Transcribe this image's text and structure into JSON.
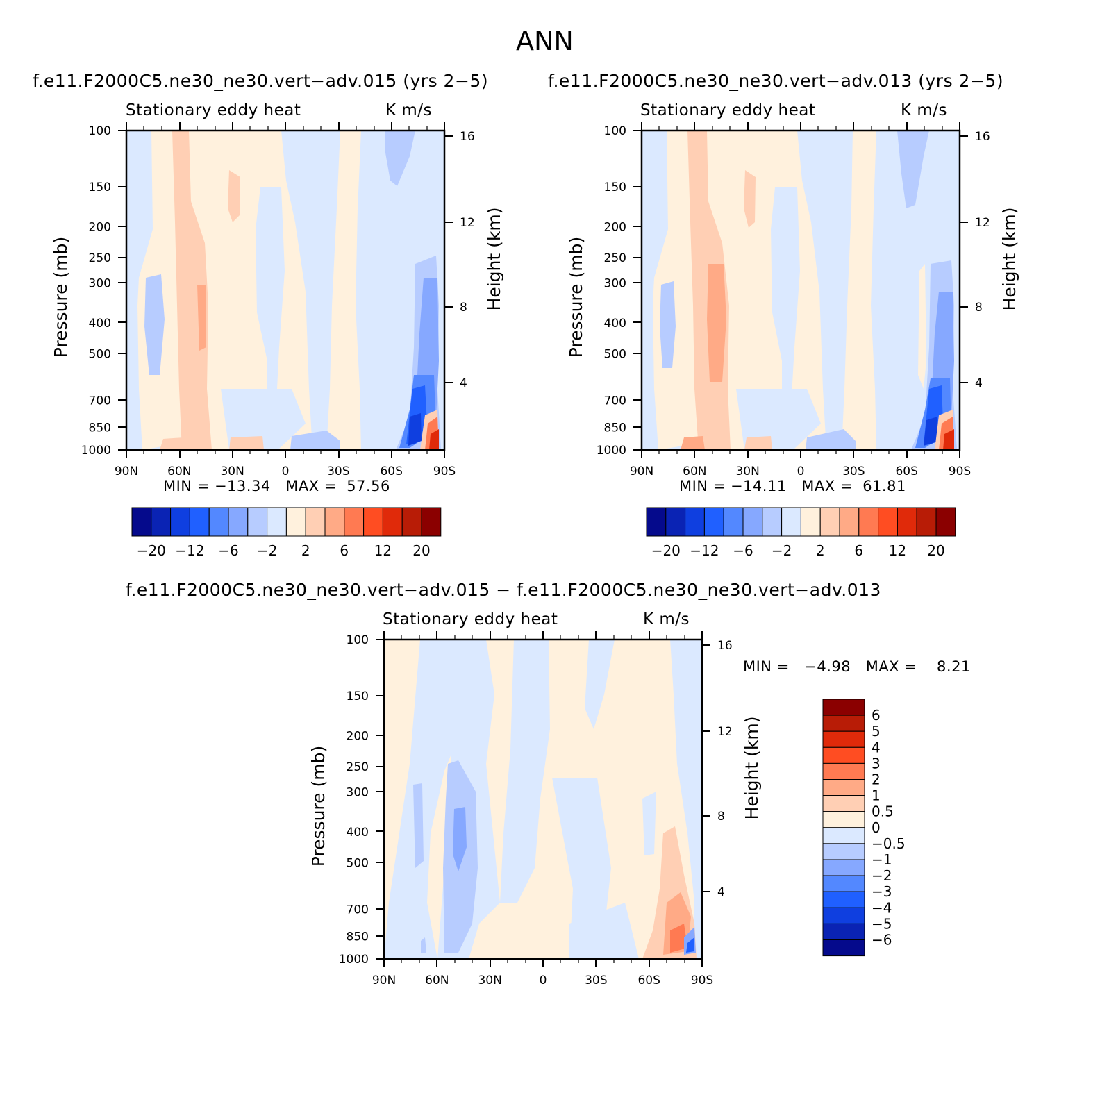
{
  "figure": {
    "title": "ANN",
    "colorbar_labels": [
      "−20",
      "−12",
      "−6",
      "−2",
      "2",
      "6",
      "12",
      "20"
    ],
    "colorbar_colors": [
      "#050a8c",
      "#0a23b4",
      "#0f3fe0",
      "#2060ff",
      "#5388ff",
      "#86a8ff",
      "#b7ccff",
      "#dbe9ff",
      "#fff1dd",
      "#ffcfb4",
      "#ffaa86",
      "#ff7a52",
      "#ff4d22",
      "#e02a0a",
      "#b81c06",
      "#8b0000"
    ],
    "diff_colorbar_labels": [
      "6",
      "5",
      "4",
      "3",
      "2",
      "1",
      "0.5",
      "0",
      "−0.5",
      "−1",
      "−2",
      "−3",
      "−4",
      "−5",
      "−6"
    ],
    "diff_colorbar_colors": [
      "#8b0000",
      "#b81c06",
      "#e02a0a",
      "#ff4d22",
      "#ff7a52",
      "#ffaa86",
      "#ffcfb4",
      "#fff1dd",
      "#dbe9ff",
      "#b7ccff",
      "#86a8ff",
      "#5388ff",
      "#2060ff",
      "#0f3fe0",
      "#0a23b4",
      "#050a8c"
    ]
  },
  "panels": [
    {
      "title": "f.e11.F2000C5.ne30_ne30.vert−adv.015 (yrs 2−5)",
      "left_label": "Stationary eddy heat",
      "right_label": "K m/s",
      "stats": "MIN = −13.34   MAX =  57.56"
    },
    {
      "title": "f.e11.F2000C5.ne30_ne30.vert−adv.013 (yrs 2−5)",
      "left_label": "Stationary eddy heat",
      "right_label": "K m/s",
      "stats": "MIN = −14.11   MAX =  61.81"
    },
    {
      "title": "f.e11.F2000C5.ne30_ne30.vert−adv.015 − f.e11.F2000C5.ne30_ne30.vert−adv.013",
      "left_label": "Stationary eddy heat",
      "right_label": "K m/s",
      "stats": "MIN =   −4.98   MAX =    8.21"
    }
  ],
  "chart_data": [
    {
      "type": "heatmap",
      "title": "f.e11.F2000C5.ne30_ne30.vert−adv.015 (yrs 2−5)",
      "variable": "Stationary eddy heat",
      "units": "K m/s",
      "xlabel": "",
      "ylabel": "Pressure (mb)",
      "ylabel_right": "Height (km)",
      "x_ticks": [
        "90N",
        "60N",
        "30N",
        "0",
        "30S",
        "60S",
        "90S"
      ],
      "y_ticks": [
        100,
        150,
        200,
        250,
        300,
        400,
        500,
        700,
        850,
        1000
      ],
      "y_right_ticks": [
        16,
        12,
        8,
        4
      ],
      "y_scale": "log",
      "ylim": [
        1000,
        100
      ],
      "min": -13.34,
      "max": 57.56
    },
    {
      "type": "heatmap",
      "title": "f.e11.F2000C5.ne30_ne30.vert−adv.013 (yrs 2−5)",
      "variable": "Stationary eddy heat",
      "units": "K m/s",
      "xlabel": "",
      "ylabel": "Pressure (mb)",
      "ylabel_right": "Height (km)",
      "x_ticks": [
        "90N",
        "60N",
        "30N",
        "0",
        "30S",
        "60S",
        "90S"
      ],
      "y_ticks": [
        100,
        150,
        200,
        250,
        300,
        400,
        500,
        700,
        850,
        1000
      ],
      "y_right_ticks": [
        16,
        12,
        8,
        4
      ],
      "y_scale": "log",
      "ylim": [
        1000,
        100
      ],
      "min": -14.11,
      "max": 61.81
    },
    {
      "type": "heatmap",
      "title": "f.e11.F2000C5.ne30_ne30.vert−adv.015 − f.e11.F2000C5.ne30_ne30.vert−adv.013",
      "variable": "Stationary eddy heat",
      "units": "K m/s",
      "xlabel": "",
      "ylabel": "Pressure (mb)",
      "ylabel_right": "Height (km)",
      "x_ticks": [
        "90N",
        "60N",
        "30N",
        "0",
        "30S",
        "60S",
        "90S"
      ],
      "y_ticks": [
        100,
        150,
        200,
        250,
        300,
        400,
        500,
        700,
        850,
        1000
      ],
      "y_right_ticks": [
        16,
        12,
        8,
        4
      ],
      "y_scale": "log",
      "ylim": [
        1000,
        100
      ],
      "min": -4.98,
      "max": 8.21
    }
  ]
}
